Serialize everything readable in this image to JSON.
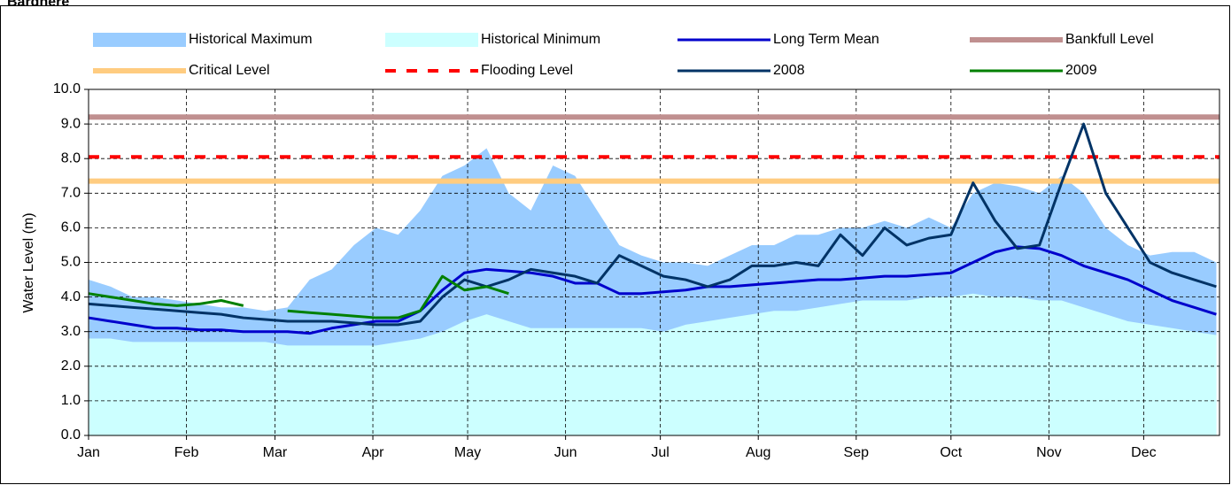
{
  "chart_data": {
    "type": "line",
    "title": "Bardhere",
    "ylabel": "Water Level (m)",
    "xlim": [
      0,
      358
    ],
    "xticks": [
      {
        "value": 0,
        "label": "Jan"
      },
      {
        "value": 31,
        "label": "Feb"
      },
      {
        "value": 59,
        "label": "Mar"
      },
      {
        "value": 90,
        "label": "Apr"
      },
      {
        "value": 120,
        "label": "May"
      },
      {
        "value": 151,
        "label": "Jun"
      },
      {
        "value": 181,
        "label": "Jul"
      },
      {
        "value": 212,
        "label": "Aug"
      },
      {
        "value": 243,
        "label": "Sep"
      },
      {
        "value": 273,
        "label": "Oct"
      },
      {
        "value": 304,
        "label": "Nov"
      },
      {
        "value": 334,
        "label": "Dec"
      }
    ],
    "ylim": [
      0,
      10
    ],
    "yticks": [
      {
        "value": 0,
        "label": "0.0"
      },
      {
        "value": 1,
        "label": "1.0"
      },
      {
        "value": 2,
        "label": "2.0"
      },
      {
        "value": 3,
        "label": "3.0"
      },
      {
        "value": 4,
        "label": "4.0"
      },
      {
        "value": 5,
        "label": "5.0"
      },
      {
        "value": 6,
        "label": "6.0"
      },
      {
        "value": 7,
        "label": "7.0"
      },
      {
        "value": 8,
        "label": "8.0"
      },
      {
        "value": 9,
        "label": "9.0"
      },
      {
        "value": 10,
        "label": "10.0"
      }
    ],
    "grid": true,
    "legend": "top",
    "x": [
      0,
      7,
      14,
      21,
      28,
      35,
      42,
      49,
      56,
      63,
      70,
      77,
      84,
      91,
      98,
      105,
      112,
      119,
      126,
      133,
      140,
      147,
      154,
      161,
      168,
      175,
      182,
      189,
      196,
      203,
      210,
      217,
      224,
      231,
      238,
      245,
      252,
      259,
      266,
      273,
      280,
      287,
      294,
      301,
      308,
      315,
      322,
      329,
      336,
      343,
      350,
      357
    ],
    "series": [
      {
        "name": "Historical Maximum",
        "kind": "area",
        "color": "#99ccff",
        "values": [
          4.5,
          4.3,
          4.0,
          4.0,
          3.9,
          3.8,
          3.7,
          3.7,
          3.6,
          3.7,
          4.5,
          4.8,
          5.5,
          6.0,
          5.8,
          6.5,
          7.5,
          7.8,
          8.3,
          7.0,
          6.5,
          7.8,
          7.5,
          6.5,
          5.5,
          5.2,
          5.0,
          5.0,
          4.9,
          5.2,
          5.5,
          5.5,
          5.8,
          5.8,
          6.0,
          6.0,
          6.2,
          6.0,
          6.3,
          6.0,
          7.0,
          7.3,
          7.2,
          7.0,
          7.5,
          7.0,
          6.0,
          5.5,
          5.2,
          5.3,
          5.3,
          5.0
        ]
      },
      {
        "name": "Historical Minimum",
        "kind": "area",
        "color": "#ccffff",
        "values": [
          2.8,
          2.8,
          2.7,
          2.7,
          2.7,
          2.7,
          2.7,
          2.7,
          2.7,
          2.6,
          2.6,
          2.6,
          2.6,
          2.6,
          2.7,
          2.8,
          3.0,
          3.3,
          3.5,
          3.3,
          3.1,
          3.1,
          3.1,
          3.1,
          3.1,
          3.1,
          3.0,
          3.2,
          3.3,
          3.4,
          3.5,
          3.6,
          3.6,
          3.7,
          3.8,
          3.9,
          3.9,
          3.9,
          4.0,
          4.0,
          4.1,
          4.0,
          4.0,
          3.9,
          3.9,
          3.7,
          3.5,
          3.3,
          3.2,
          3.1,
          3.0,
          2.9
        ]
      },
      {
        "name": "Long Term Mean",
        "kind": "line",
        "color": "#0000cc",
        "values": [
          3.4,
          3.3,
          3.2,
          3.1,
          3.1,
          3.05,
          3.05,
          3.0,
          3.0,
          3.0,
          2.95,
          3.1,
          3.2,
          3.3,
          3.3,
          3.6,
          4.2,
          4.7,
          4.8,
          4.75,
          4.7,
          4.6,
          4.4,
          4.4,
          4.1,
          4.1,
          4.15,
          4.2,
          4.3,
          4.3,
          4.35,
          4.4,
          4.45,
          4.5,
          4.5,
          4.55,
          4.6,
          4.6,
          4.65,
          4.7,
          5.0,
          5.3,
          5.45,
          5.4,
          5.2,
          4.9,
          4.7,
          4.5,
          4.2,
          3.9,
          3.7,
          3.5
        ]
      },
      {
        "name": "Bankfull Level",
        "kind": "hline",
        "color": "#c09090",
        "value": 9.2
      },
      {
        "name": "Critical Level",
        "kind": "hline",
        "color": "#ffcc80",
        "value": 7.35
      },
      {
        "name": "Flooding Level",
        "kind": "hline",
        "color": "#ff0000",
        "dashed": true,
        "value": 8.05
      },
      {
        "name": "2008",
        "kind": "line",
        "color": "#003366",
        "values": [
          3.8,
          3.75,
          3.7,
          3.65,
          3.6,
          3.55,
          3.5,
          3.4,
          3.35,
          3.3,
          3.3,
          3.3,
          3.25,
          3.2,
          3.2,
          3.3,
          4.0,
          4.5,
          4.3,
          4.5,
          4.8,
          4.7,
          4.6,
          4.4,
          5.2,
          4.9,
          4.6,
          4.5,
          4.3,
          4.5,
          4.9,
          4.9,
          5.0,
          4.9,
          5.8,
          5.2,
          6.0,
          5.5,
          5.7,
          5.8,
          7.3,
          6.2,
          5.4,
          5.5,
          7.3,
          9.0,
          7.0,
          6.0,
          5.0,
          4.7,
          4.5,
          4.3
        ]
      },
      {
        "name": "2009",
        "kind": "line",
        "color": "#008000",
        "values": [
          4.1,
          4.0,
          3.9,
          3.8,
          3.75,
          3.8,
          3.9,
          3.75,
          null,
          3.6,
          3.55,
          3.5,
          3.45,
          3.4,
          3.4,
          3.6,
          4.6,
          4.2,
          4.3,
          4.1,
          null,
          null,
          null,
          null,
          null,
          null,
          null,
          null,
          null,
          null,
          null,
          null,
          null,
          null,
          null,
          null,
          null,
          null,
          null,
          null,
          null,
          null,
          null,
          null,
          null,
          null,
          null,
          null,
          null,
          null,
          null,
          null
        ]
      }
    ]
  }
}
